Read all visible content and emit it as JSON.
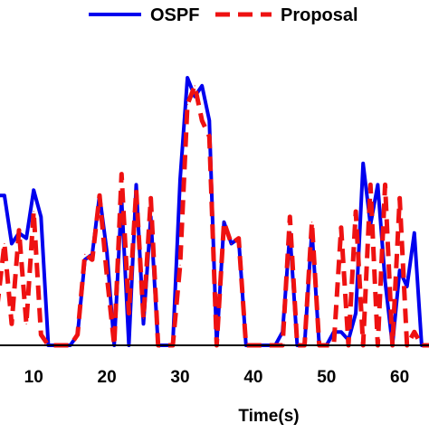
{
  "chart_data": {
    "type": "line",
    "xlabel": "Time(s)",
    "ylabel": "",
    "title": "",
    "xlim": [
      5.4,
      64
    ],
    "ylim": [
      0,
      1
    ],
    "xticks": [
      10,
      20,
      30,
      40,
      50,
      60
    ],
    "xtick_labels": [
      "10",
      "20",
      "30",
      "40",
      "50",
      "60"
    ],
    "grid": false,
    "legend_position": "top",
    "series": [
      {
        "name": "OSPF",
        "color": "#0000ee",
        "style": "solid",
        "x": [
          5,
          6,
          7,
          8,
          9,
          10,
          11,
          12,
          13,
          14,
          15,
          16,
          17,
          18,
          19,
          20,
          21,
          22,
          23,
          24,
          25,
          26,
          27,
          28,
          29,
          30,
          31,
          32,
          33,
          34,
          35,
          36,
          37,
          38,
          39,
          40,
          41,
          42,
          43,
          44,
          45,
          46,
          47,
          48,
          49,
          50,
          51,
          52,
          53,
          54,
          55,
          56,
          57,
          58,
          59,
          60,
          61,
          62,
          63,
          64
        ],
        "y": [
          0.56,
          0.56,
          0.38,
          0.42,
          0.4,
          0.58,
          0.48,
          0.0,
          0.0,
          0.0,
          0.0,
          0.04,
          0.32,
          0.34,
          0.56,
          0.35,
          0.0,
          0.55,
          0.0,
          0.6,
          0.08,
          0.48,
          0.0,
          0.0,
          0.0,
          0.62,
          1.0,
          0.93,
          0.97,
          0.84,
          0.0,
          0.46,
          0.38,
          0.4,
          0.0,
          0.0,
          0.0,
          0.0,
          0.0,
          0.05,
          0.42,
          0.0,
          0.0,
          0.43,
          0.0,
          0.0,
          0.05,
          0.05,
          0.02,
          0.12,
          0.68,
          0.45,
          0.6,
          0.24,
          0.0,
          0.28,
          0.22,
          0.42,
          0.0,
          0.0
        ]
      },
      {
        "name": "Proposal",
        "color": "#ee1111",
        "style": "dashed",
        "x": [
          5,
          6,
          7,
          8,
          9,
          10,
          11,
          12,
          13,
          14,
          15,
          16,
          17,
          18,
          19,
          20,
          21,
          22,
          23,
          24,
          25,
          26,
          27,
          28,
          29,
          30,
          31,
          32,
          33,
          34,
          35,
          36,
          37,
          38,
          39,
          40,
          41,
          42,
          43,
          44,
          45,
          46,
          47,
          48,
          49,
          50,
          51,
          52,
          53,
          54,
          55,
          56,
          57,
          58,
          59,
          60,
          61,
          62,
          63,
          64
        ],
        "y": [
          0.14,
          0.38,
          0.08,
          0.43,
          0.08,
          0.5,
          0.04,
          0.0,
          0.0,
          0.0,
          0.0,
          0.04,
          0.34,
          0.32,
          0.56,
          0.26,
          0.0,
          0.64,
          0.12,
          0.58,
          0.1,
          0.55,
          0.0,
          0.0,
          0.0,
          0.3,
          0.9,
          0.97,
          0.84,
          0.78,
          0.0,
          0.46,
          0.38,
          0.4,
          0.0,
          0.0,
          0.0,
          0.0,
          0.0,
          0.0,
          0.48,
          0.0,
          0.0,
          0.46,
          0.0,
          0.0,
          0.0,
          0.44,
          0.0,
          0.5,
          0.0,
          0.6,
          0.0,
          0.6,
          0.0,
          0.55,
          0.0,
          0.05,
          0.0,
          0.0
        ]
      }
    ]
  }
}
